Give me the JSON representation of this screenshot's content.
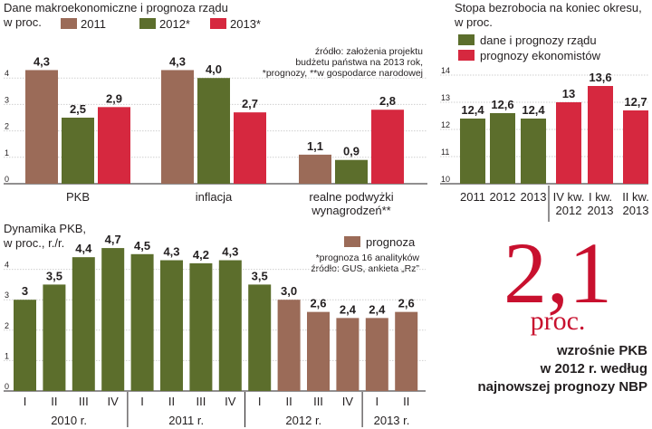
{
  "colors": {
    "brown": "#9b6b58",
    "green": "#5c6e2c",
    "red": "#d6283f",
    "bigRed": "#c8102e",
    "grid": "#cfcfcf"
  },
  "chart_data": [
    {
      "id": "macro",
      "type": "bar",
      "title": "Dane makroekonomiczne i prognoza rządu",
      "subtitle": "w proc.",
      "source": [
        "źródło: założenia projektu",
        "budżetu państwa na 2013 rok,",
        "*prognozy, **w gospodarce narodowej"
      ],
      "categories": [
        "PKB",
        "inflacja",
        "realne podwyżki wynagrodzeń**"
      ],
      "category_lines": [
        [
          "PKB"
        ],
        [
          "inflacja"
        ],
        [
          "realne podwyżki",
          "wynagrodzeń**"
        ]
      ],
      "series": [
        {
          "name": "2011",
          "color": "brown",
          "values": [
            4.3,
            4.3,
            1.1
          ],
          "labels": [
            "4,3",
            "4,3",
            "1,1"
          ]
        },
        {
          "name": "2012*",
          "color": "green",
          "values": [
            2.5,
            4.0,
            0.9
          ],
          "labels": [
            "2,5",
            "4,0",
            "0,9"
          ]
        },
        {
          "name": "2013*",
          "color": "red",
          "values": [
            2.9,
            2.7,
            2.8
          ],
          "labels": [
            "2,9",
            "2,7",
            "2,8"
          ]
        }
      ],
      "ylim": [
        0,
        4.5
      ],
      "yticks": [
        0,
        1,
        2,
        3,
        4
      ],
      "grid": true,
      "legend": "top"
    },
    {
      "id": "unemployment",
      "type": "bar",
      "title": "Stopa bezrobocia na koniec okresu,",
      "subtitle": "w proc.",
      "categories": [
        "2011",
        "2012",
        "2013",
        "IV kw. 2012",
        "I kw. 2013",
        "II kw. 2013"
      ],
      "category_lines": [
        [
          "2011"
        ],
        [
          "2012"
        ],
        [
          "2013"
        ],
        [
          "IV kw.",
          "2012"
        ],
        [
          "I kw.",
          "2013"
        ],
        [
          "II kw.",
          "2013"
        ]
      ],
      "values": [
        12.4,
        12.6,
        12.4,
        13.0,
        13.6,
        12.7
      ],
      "labels": [
        "12,4",
        "12,6",
        "12,4",
        "13",
        "13,6",
        "12,7"
      ],
      "series": [
        {
          "name": "dane i prognozy rządu",
          "color": "green",
          "indices": [
            0,
            1,
            2
          ]
        },
        {
          "name": "prognozy ekonomistów",
          "color": "red",
          "indices": [
            3,
            4,
            5
          ]
        }
      ],
      "ylim": [
        10,
        14
      ],
      "yticks": [
        10,
        11,
        12,
        13,
        14
      ],
      "grid": true,
      "legend": "top-left"
    },
    {
      "id": "gdp_dynamics",
      "type": "bar",
      "title": "Dynamika PKB,",
      "subtitle": "w proc., r./r.",
      "source": [
        "*prognoza 16 analityków",
        "źródło: GUS, ankieta „Rz”"
      ],
      "legend_label": "prognoza",
      "categories": [
        "I",
        "II",
        "III",
        "IV",
        "I",
        "II",
        "III",
        "IV",
        "I",
        "II",
        "III",
        "IV",
        "I",
        "II"
      ],
      "groups": [
        {
          "label": "2010 r.",
          "count": 4
        },
        {
          "label": "2011 r.",
          "count": 4
        },
        {
          "label": "2012 r.",
          "count": 4
        },
        {
          "label": "2013 r.",
          "count": 2
        }
      ],
      "values": [
        3.0,
        3.5,
        4.4,
        4.7,
        4.5,
        4.3,
        4.2,
        4.3,
        3.5,
        3.0,
        2.6,
        2.4,
        2.4,
        2.6
      ],
      "labels": [
        "3",
        "3,5",
        "4,4",
        "4,7",
        "4,5",
        "4,3",
        "4,2",
        "4,3",
        "3,5",
        "3,0",
        "2,6",
        "2,4",
        "2,4",
        "2,6"
      ],
      "colors": [
        "green",
        "green",
        "green",
        "green",
        "green",
        "green",
        "green",
        "green",
        "green",
        "brown",
        "brown",
        "brown",
        "brown",
        "brown"
      ],
      "ylim": [
        0,
        5
      ],
      "yticks": [
        0,
        1,
        2,
        3,
        4
      ],
      "grid": true,
      "legend": "top-right"
    }
  ],
  "highlight": {
    "value": "2,1",
    "unit": "proc.",
    "lines": [
      "wzrośnie PKB",
      "w 2012 r. według",
      "najnowszej prognozy NBP"
    ]
  }
}
